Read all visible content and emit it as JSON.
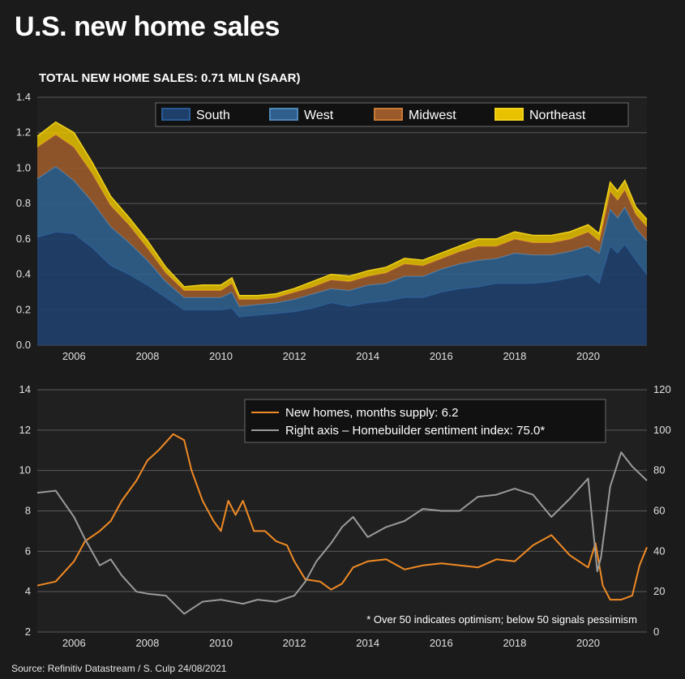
{
  "title": "U.S. new home sales",
  "source": "Source: Refinitiv Datastream / S. Culp 24/08/2021",
  "colors": {
    "background": "#1b1b1b",
    "south": "#1f3f6b",
    "west": "#2f5f8c",
    "midwest": "#9a5a2a",
    "northeast": "#e8c200",
    "supply": "#f08a24",
    "sentiment": "#9a9a9a",
    "grid": "#5a5a5a"
  },
  "chart_data": [
    {
      "type": "area",
      "title": "TOTAL NEW HOME SALES: 0.71 MLN (SAAR)",
      "stacked": true,
      "x_ticks": [
        "2006",
        "2008",
        "2010",
        "2012",
        "2014",
        "2016",
        "2018",
        "2020"
      ],
      "y_ticks": [
        "0.0",
        "0.2",
        "0.4",
        "0.6",
        "0.8",
        "1.0",
        "1.2",
        "1.4"
      ],
      "ylim": [
        0,
        1.4
      ],
      "xlim": [
        2005.0,
        2021.6
      ],
      "legend": [
        "South",
        "West",
        "Midwest",
        "Northeast"
      ],
      "legend_position": "top",
      "grid": true,
      "x": [
        2005.0,
        2005.5,
        2006.0,
        2006.5,
        2007.0,
        2007.5,
        2008.0,
        2008.5,
        2009.0,
        2009.5,
        2010.0,
        2010.3,
        2010.5,
        2011.0,
        2011.5,
        2012.0,
        2012.5,
        2013.0,
        2013.5,
        2014.0,
        2014.5,
        2015.0,
        2015.5,
        2016.0,
        2016.5,
        2017.0,
        2017.5,
        2018.0,
        2018.5,
        2019.0,
        2019.5,
        2020.0,
        2020.3,
        2020.6,
        2020.8,
        2021.0,
        2021.3,
        2021.6
      ],
      "series": [
        {
          "name": "South",
          "values": [
            0.61,
            0.64,
            0.63,
            0.55,
            0.45,
            0.4,
            0.34,
            0.27,
            0.2,
            0.2,
            0.2,
            0.21,
            0.16,
            0.17,
            0.18,
            0.19,
            0.21,
            0.24,
            0.22,
            0.24,
            0.25,
            0.27,
            0.27,
            0.3,
            0.32,
            0.33,
            0.35,
            0.35,
            0.35,
            0.36,
            0.38,
            0.4,
            0.35,
            0.56,
            0.52,
            0.57,
            0.48,
            0.4
          ]
        },
        {
          "name": "West",
          "values": [
            0.33,
            0.37,
            0.3,
            0.26,
            0.22,
            0.18,
            0.14,
            0.09,
            0.07,
            0.07,
            0.07,
            0.09,
            0.06,
            0.06,
            0.06,
            0.07,
            0.08,
            0.08,
            0.09,
            0.1,
            0.1,
            0.12,
            0.12,
            0.13,
            0.14,
            0.15,
            0.14,
            0.17,
            0.16,
            0.15,
            0.15,
            0.16,
            0.17,
            0.21,
            0.2,
            0.21,
            0.18,
            0.19
          ]
        },
        {
          "name": "Midwest",
          "values": [
            0.18,
            0.18,
            0.19,
            0.16,
            0.12,
            0.1,
            0.07,
            0.05,
            0.04,
            0.04,
            0.04,
            0.05,
            0.04,
            0.03,
            0.03,
            0.04,
            0.04,
            0.05,
            0.05,
            0.05,
            0.06,
            0.07,
            0.06,
            0.06,
            0.07,
            0.08,
            0.07,
            0.08,
            0.07,
            0.07,
            0.07,
            0.08,
            0.07,
            0.1,
            0.1,
            0.1,
            0.08,
            0.08
          ]
        },
        {
          "name": "Northeast",
          "values": [
            0.06,
            0.07,
            0.08,
            0.06,
            0.05,
            0.04,
            0.04,
            0.03,
            0.02,
            0.03,
            0.03,
            0.03,
            0.02,
            0.02,
            0.02,
            0.02,
            0.03,
            0.03,
            0.03,
            0.03,
            0.03,
            0.03,
            0.03,
            0.03,
            0.03,
            0.04,
            0.04,
            0.04,
            0.04,
            0.04,
            0.04,
            0.04,
            0.04,
            0.05,
            0.05,
            0.05,
            0.04,
            0.04
          ]
        }
      ]
    },
    {
      "type": "line",
      "left_y_ticks": [
        "2",
        "4",
        "6",
        "8",
        "10",
        "12",
        "14"
      ],
      "right_y_ticks": [
        "0",
        "20",
        "40",
        "60",
        "80",
        "100",
        "120"
      ],
      "x_ticks": [
        "2006",
        "2008",
        "2010",
        "2012",
        "2014",
        "2016",
        "2018",
        "2020"
      ],
      "ylim_left": [
        2,
        14
      ],
      "ylim_right": [
        0,
        120
      ],
      "xlim": [
        2005.0,
        2021.6
      ],
      "legend_position": "top-right",
      "grid": true,
      "note": "* Over 50 indicates optimism; below 50 signals pessimism",
      "series": [
        {
          "name": "New homes, months supply: 6.2",
          "axis": "left",
          "x": [
            2005.0,
            2005.5,
            2006.0,
            2006.3,
            2006.7,
            2007.0,
            2007.3,
            2007.7,
            2008.0,
            2008.3,
            2008.7,
            2009.0,
            2009.2,
            2009.5,
            2009.8,
            2010.0,
            2010.2,
            2010.4,
            2010.6,
            2010.9,
            2011.2,
            2011.5,
            2011.8,
            2012.0,
            2012.3,
            2012.7,
            2013.0,
            2013.3,
            2013.6,
            2014.0,
            2014.5,
            2015.0,
            2015.5,
            2016.0,
            2016.5,
            2017.0,
            2017.5,
            2018.0,
            2018.5,
            2019.0,
            2019.5,
            2020.0,
            2020.2,
            2020.4,
            2020.6,
            2020.9,
            2021.2,
            2021.4,
            2021.6
          ],
          "values": [
            4.3,
            4.5,
            5.5,
            6.5,
            7.0,
            7.5,
            8.5,
            9.5,
            10.5,
            11.0,
            11.8,
            11.5,
            10.0,
            8.5,
            7.5,
            7.0,
            8.5,
            7.8,
            8.5,
            7.0,
            7.0,
            6.5,
            6.3,
            5.5,
            4.6,
            4.5,
            4.1,
            4.4,
            5.2,
            5.5,
            5.6,
            5.1,
            5.3,
            5.4,
            5.3,
            5.2,
            5.6,
            5.5,
            6.3,
            6.8,
            5.8,
            5.2,
            6.4,
            4.3,
            3.6,
            3.6,
            3.8,
            5.3,
            6.2
          ]
        },
        {
          "name": "Right axis – Homebuilder sentiment index: 75.0*",
          "axis": "right",
          "x": [
            2005.0,
            2005.5,
            2006.0,
            2006.3,
            2006.7,
            2007.0,
            2007.3,
            2007.7,
            2008.0,
            2008.5,
            2009.0,
            2009.5,
            2010.0,
            2010.3,
            2010.6,
            2011.0,
            2011.5,
            2012.0,
            2012.3,
            2012.6,
            2013.0,
            2013.3,
            2013.6,
            2014.0,
            2014.5,
            2015.0,
            2015.5,
            2016.0,
            2016.5,
            2017.0,
            2017.5,
            2018.0,
            2018.5,
            2019.0,
            2019.5,
            2020.0,
            2020.25,
            2020.35,
            2020.6,
            2020.9,
            2021.2,
            2021.6
          ],
          "values": [
            69,
            70,
            57,
            46,
            33,
            36,
            28,
            20,
            19,
            18,
            9,
            15,
            16,
            15,
            14,
            16,
            15,
            18,
            25,
            35,
            44,
            52,
            57,
            47,
            52,
            55,
            61,
            60,
            60,
            67,
            68,
            71,
            68,
            57,
            66,
            76,
            30,
            37,
            72,
            89,
            82,
            75
          ]
        }
      ]
    }
  ]
}
